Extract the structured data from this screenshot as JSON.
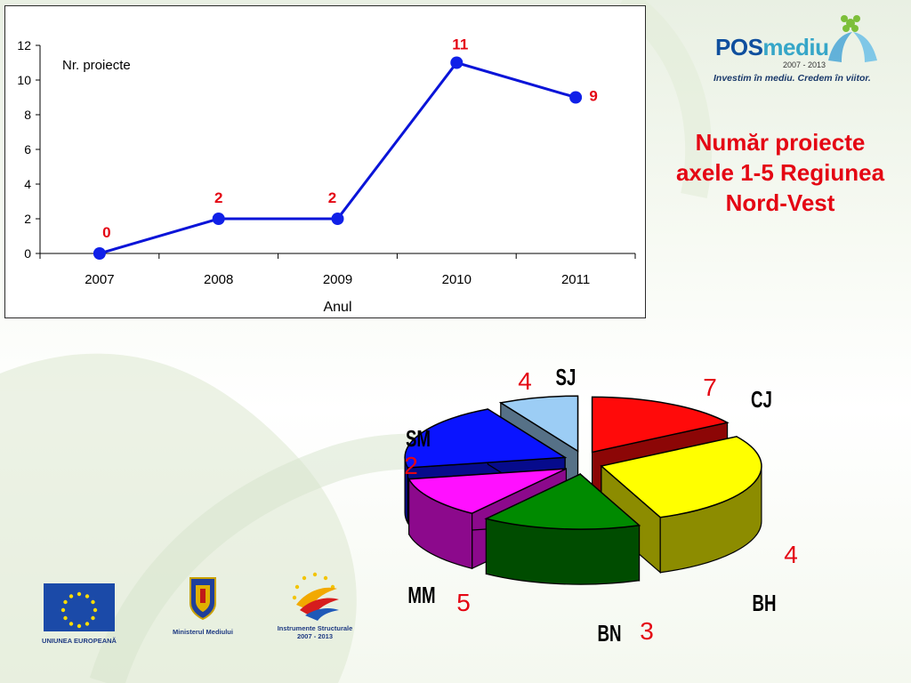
{
  "slide_title": "Număr proiecte axele 1-5 Regiunea Nord-Vest",
  "logos": {
    "pos_prefix": "POS",
    "pos_suffix": "mediu",
    "pos_years": "2007 - 2013",
    "pos_tagline": "Investim în mediu. Credem în viitor.",
    "eu": "UNIUNEA EUROPEANĂ",
    "ministry": "Ministerul Mediului",
    "structural_1": "Instrumente Structurale",
    "structural_2": "2007 - 2013"
  },
  "colors": {
    "line": "#0a14d8",
    "marker": "#1020e8",
    "data_label": "#e40613",
    "title": "#e40613"
  },
  "chart_data": [
    {
      "type": "line",
      "x": [
        "2007",
        "2008",
        "2009",
        "2010",
        "2011"
      ],
      "values": [
        0,
        2,
        2,
        11,
        9
      ],
      "xlabel": "Anul",
      "ylabel": "Nr. proiecte",
      "ylim": [
        0,
        12
      ],
      "yticks": [
        0,
        2,
        4,
        6,
        8,
        10,
        12
      ],
      "grid": false,
      "legend": "none"
    },
    {
      "type": "pie",
      "slices": [
        {
          "label": "SJ",
          "value": 4,
          "color": "#ff0a0a"
        },
        {
          "label": "CJ",
          "value": 7,
          "color": "#ffff00"
        },
        {
          "label": "BH",
          "value": 4,
          "color": "#008a00"
        },
        {
          "label": "BN",
          "value": 3,
          "color": "#ff10ff"
        },
        {
          "label": "MM",
          "value": 5,
          "color": "#0a14ff"
        },
        {
          "label": "SM",
          "value": 2,
          "color": "#9ccdf5"
        }
      ],
      "exploded": true,
      "three_d": true
    }
  ]
}
